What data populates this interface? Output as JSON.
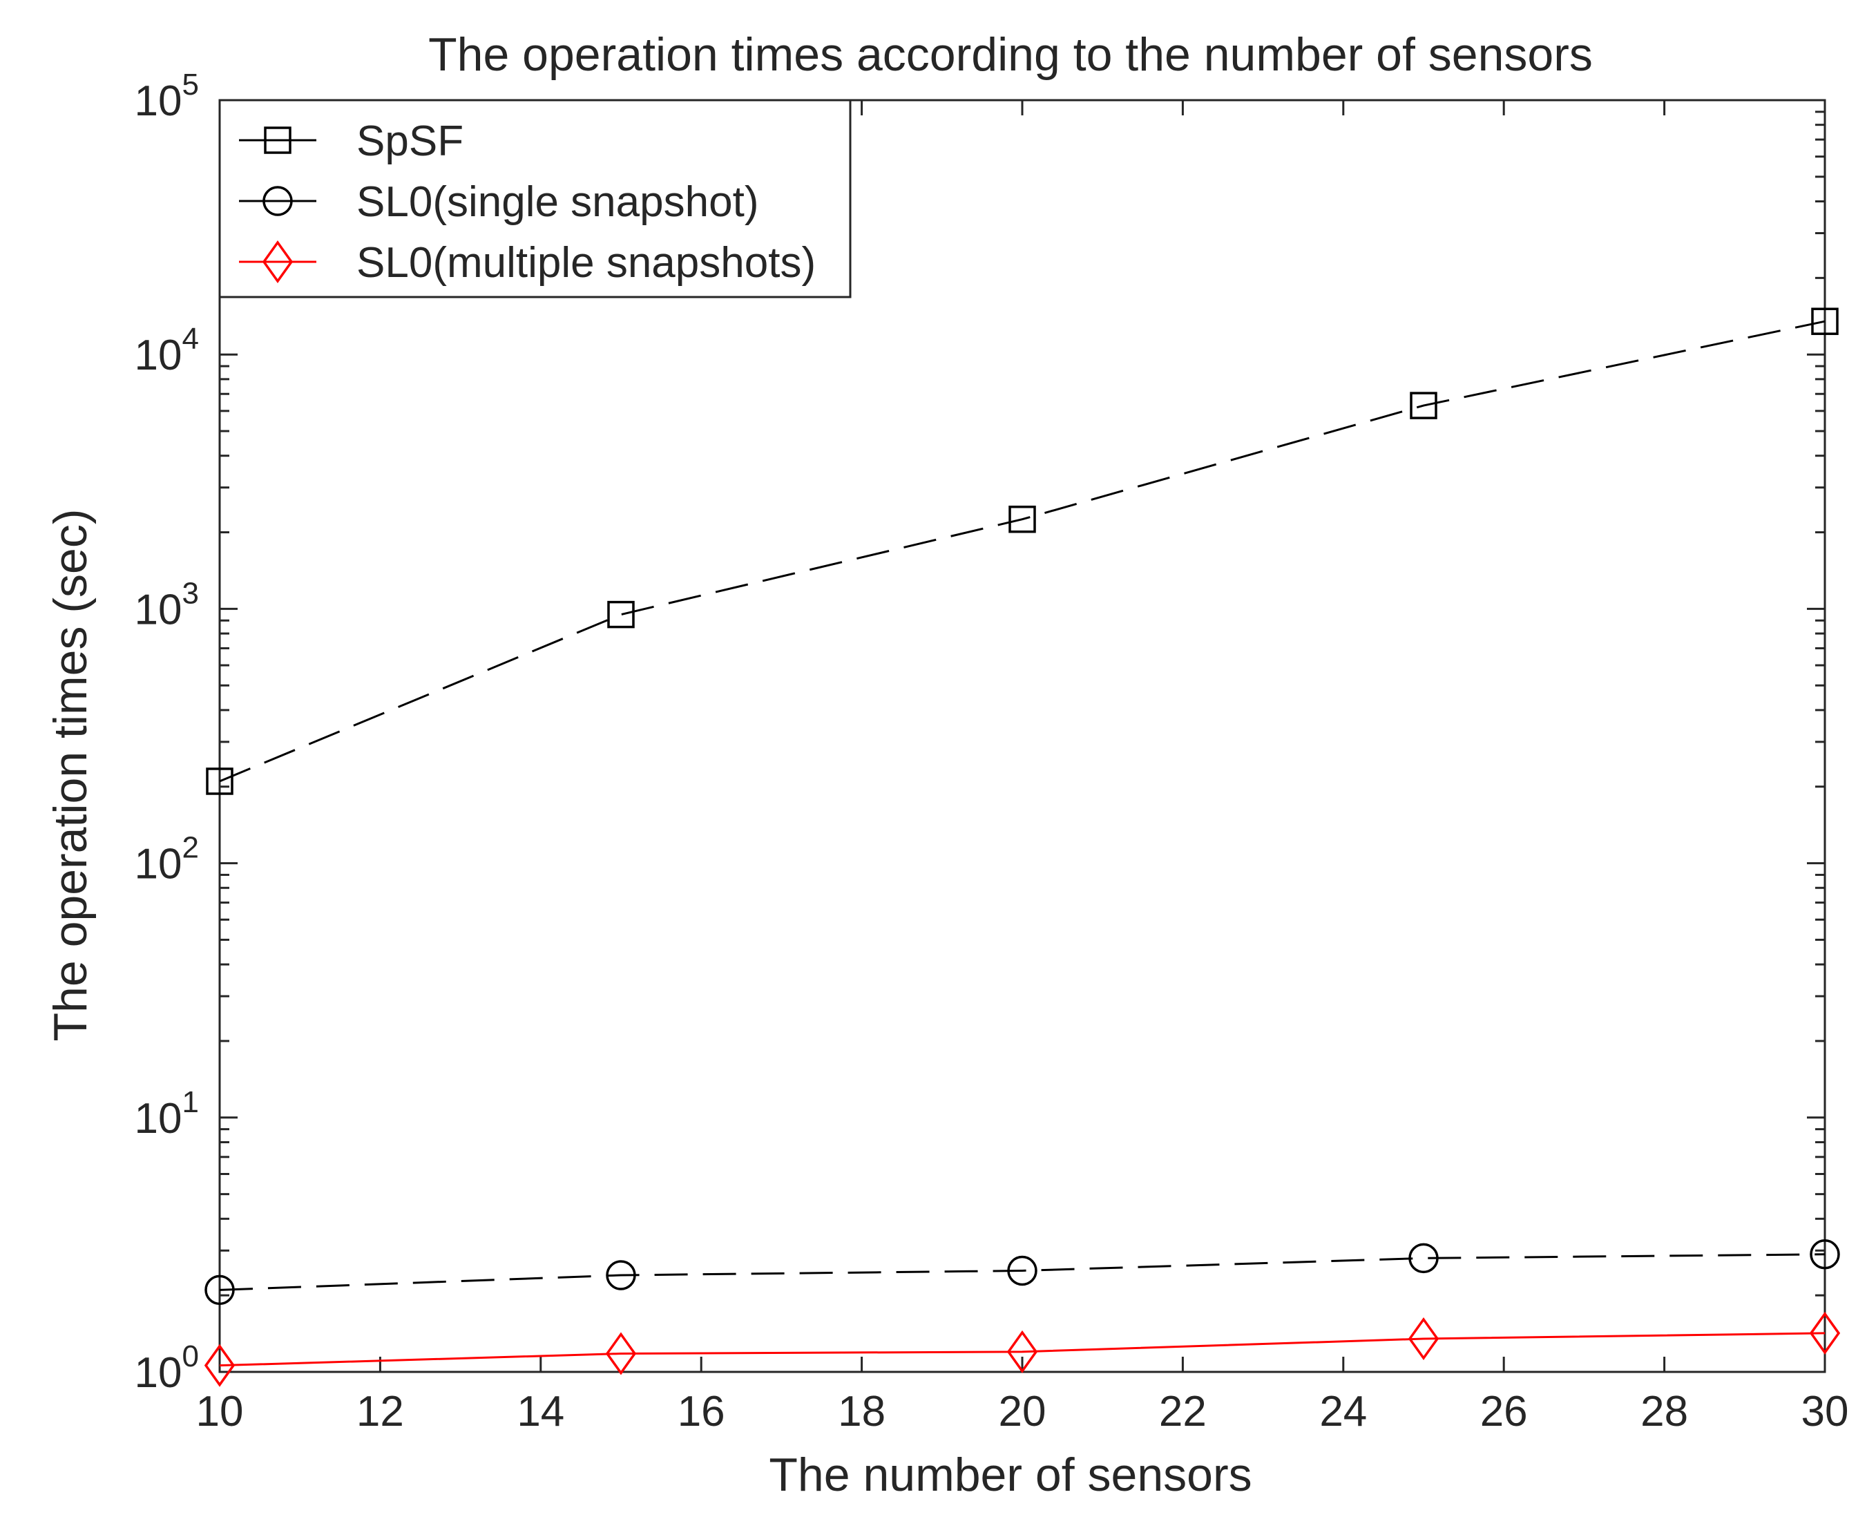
{
  "chart_data": {
    "type": "line",
    "title": "The operation times according to the number of sensors",
    "xlabel": "The number of sensors",
    "ylabel": "The operation times (sec)",
    "xscale": "linear",
    "yscale": "log",
    "xlim": [
      10,
      30
    ],
    "ylim": [
      1,
      100000
    ],
    "xticks": [
      10,
      12,
      14,
      16,
      18,
      20,
      22,
      24,
      26,
      28,
      30
    ],
    "yticks": [
      {
        "value": 1,
        "base": "10",
        "exp": "0"
      },
      {
        "value": 10,
        "base": "10",
        "exp": "1"
      },
      {
        "value": 100,
        "base": "10",
        "exp": "2"
      },
      {
        "value": 1000,
        "base": "10",
        "exp": "3"
      },
      {
        "value": 10000,
        "base": "10",
        "exp": "4"
      },
      {
        "value": 100000,
        "base": "10",
        "exp": "5"
      }
    ],
    "grid": false,
    "legend_position": "top-left",
    "x": [
      10,
      15,
      20,
      25,
      30
    ],
    "series": [
      {
        "name": "SpSF",
        "values": [
          210,
          950,
          2250,
          6300,
          13500
        ],
        "color": "#000000",
        "line_style": "dashed",
        "marker": "square"
      },
      {
        "name": "SL0(single snapshot)",
        "values": [
          2.1,
          2.4,
          2.5,
          2.8,
          2.9
        ],
        "color": "#000000",
        "line_style": "dashed",
        "marker": "circle"
      },
      {
        "name": "SL0(multiple snapshots)",
        "values": [
          1.06,
          1.18,
          1.2,
          1.35,
          1.42
        ],
        "color": "#ff0000",
        "line_style": "solid",
        "marker": "diamond"
      }
    ]
  }
}
